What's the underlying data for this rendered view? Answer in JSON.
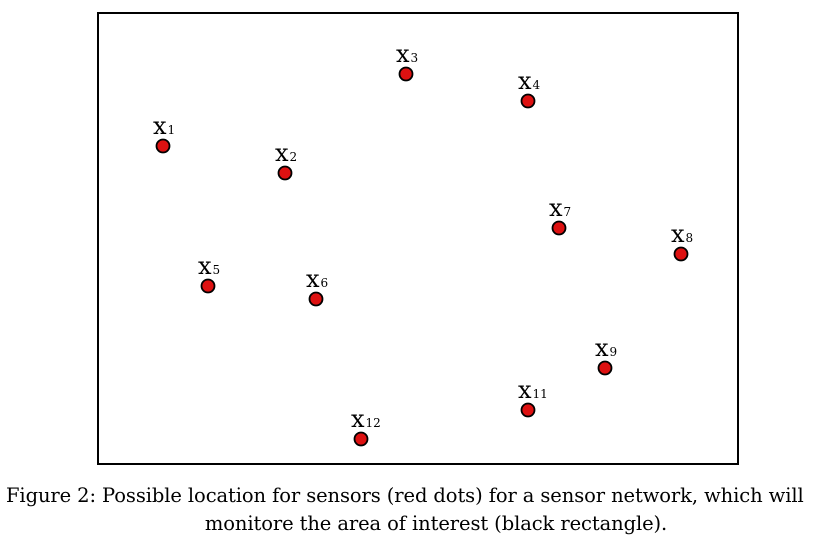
{
  "figure": {
    "sensors": [
      {
        "name": "x",
        "sub": "1"
      },
      {
        "name": "x",
        "sub": "2"
      },
      {
        "name": "x",
        "sub": "3"
      },
      {
        "name": "x",
        "sub": "4"
      },
      {
        "name": "x",
        "sub": "5"
      },
      {
        "name": "x",
        "sub": "6"
      },
      {
        "name": "x",
        "sub": "7"
      },
      {
        "name": "x",
        "sub": "8"
      },
      {
        "name": "x",
        "sub": "9"
      },
      {
        "name": "x",
        "sub": "11"
      },
      {
        "name": "x",
        "sub": "12"
      }
    ],
    "colors": {
      "dot_fill": "#dd1111",
      "dot_stroke": "#000000",
      "area_stroke": "#000000"
    }
  },
  "caption": {
    "line1": "Figure 2: Possible location for sensors (red dots) for a sensor network, which will",
    "line2": "monitore the area of interest (black rectangle)."
  }
}
